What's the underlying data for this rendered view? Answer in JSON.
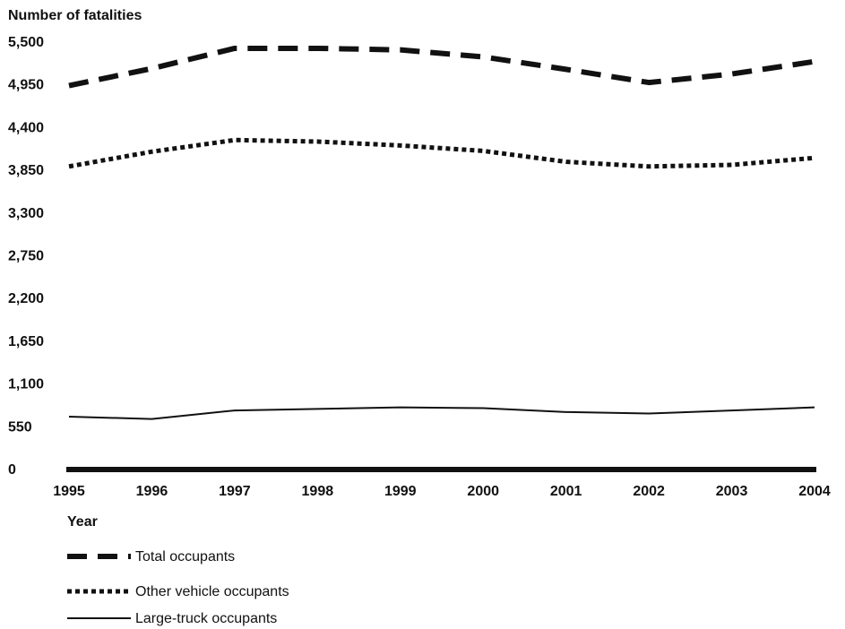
{
  "chart_data": {
    "type": "line",
    "ylabel": "Number of fatalities",
    "xlabel": "Year",
    "x": [
      1995,
      1996,
      1997,
      1998,
      1999,
      2000,
      2001,
      2002,
      2003,
      2004
    ],
    "yticks": [
      "0",
      "550",
      "1,100",
      "1,650",
      "2,200",
      "2,750",
      "3,300",
      "3,850",
      "4,400",
      "4,950",
      "5,500"
    ],
    "ylim": [
      0,
      5500
    ],
    "grid": false,
    "legend_position": "bottom-left",
    "series": [
      {
        "name": "Total occupants",
        "style": "dashed",
        "values": [
          4940,
          5160,
          5420,
          5420,
          5400,
          5310,
          5150,
          4980,
          5090,
          5250
        ]
      },
      {
        "name": "Other vehicle occupants",
        "style": "dotted",
        "values": [
          3900,
          4090,
          4240,
          4220,
          4170,
          4100,
          3960,
          3900,
          3920,
          4010
        ]
      },
      {
        "name": "Large-truck occupants",
        "style": "solid",
        "values": [
          680,
          650,
          760,
          780,
          800,
          790,
          740,
          720,
          760,
          800
        ]
      }
    ],
    "colors": {
      "line": "#111111",
      "axis": "#111111"
    }
  }
}
